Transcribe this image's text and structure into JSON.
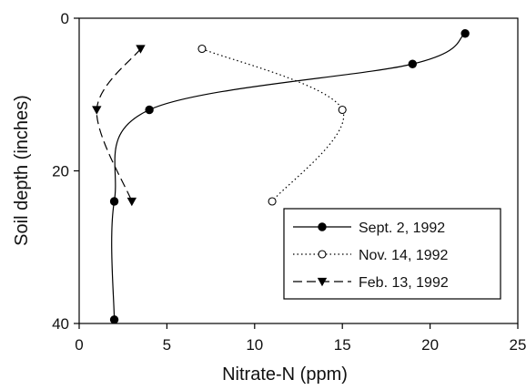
{
  "chart_data": {
    "type": "line",
    "title": "",
    "xlabel": "Nitrate-N (ppm)",
    "ylabel": "Soil depth (inches)",
    "xlim": [
      0,
      25
    ],
    "ylim": [
      0,
      40
    ],
    "y_inverted": true,
    "x_ticks": [
      "0",
      "5",
      "10",
      "15",
      "20",
      "25"
    ],
    "y_ticks": [
      "0",
      "20",
      "40"
    ],
    "grid": false,
    "legend_position": "bottom-right",
    "series": [
      {
        "name": "Sept. 2, 1992",
        "line_style": "solid",
        "marker": "filled-circle",
        "color": "#000000",
        "points": [
          {
            "x": 22,
            "y": 2
          },
          {
            "x": 19,
            "y": 6
          },
          {
            "x": 4,
            "y": 12
          },
          {
            "x": 2,
            "y": 24
          },
          {
            "x": 2,
            "y": 39.5
          }
        ]
      },
      {
        "name": "Nov. 14, 1992",
        "line_style": "dotted",
        "marker": "open-circle",
        "color": "#000000",
        "points": [
          {
            "x": 7,
            "y": 4
          },
          {
            "x": 15,
            "y": 12
          },
          {
            "x": 11,
            "y": 24
          }
        ]
      },
      {
        "name": "Feb. 13, 1992",
        "line_style": "dashed",
        "marker": "filled-triangle-down",
        "color": "#000000",
        "points": [
          {
            "x": 3.5,
            "y": 4
          },
          {
            "x": 1,
            "y": 12
          },
          {
            "x": 3,
            "y": 24
          }
        ]
      }
    ]
  }
}
